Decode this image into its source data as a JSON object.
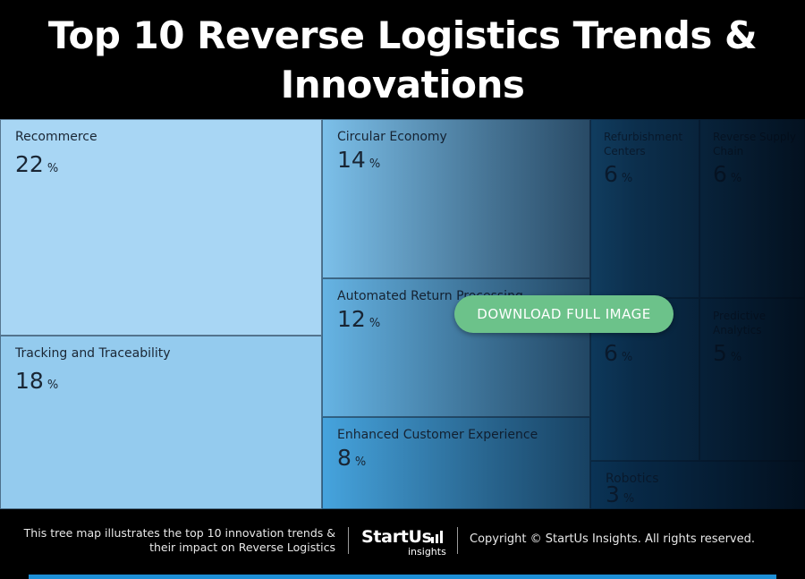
{
  "header": {
    "title": "Top 10 Reverse Logistics Trends & Innovations"
  },
  "chart_data": {
    "type": "treemap",
    "unit": "%",
    "items": [
      {
        "label": "Recommerce",
        "value": 22,
        "color": "#a8d6f4"
      },
      {
        "label": "Tracking and Traceability",
        "value": 18,
        "color": "#94cbee"
      },
      {
        "label": "Circular Economy",
        "value": 14,
        "color": "#7cc0ea"
      },
      {
        "label": "Automated Return Processing",
        "value": 12,
        "color": "#66b4e4"
      },
      {
        "label": "Enhanced Customer Experience",
        "value": 8,
        "color": "#46a4de"
      },
      {
        "label": "Refurbishment Centers",
        "value": 6,
        "color": "#2f96d6"
      },
      {
        "label": "Reverse Supply Chain",
        "value": 6,
        "color": "#2a8fd0"
      },
      {
        "label": "",
        "value": 6,
        "color": "#2588c8"
      },
      {
        "label": "Predictive Analytics",
        "value": 5,
        "color": "#2080c0"
      },
      {
        "label": "Robotics",
        "value": 3,
        "color": "#1a78b8"
      }
    ]
  },
  "cta": {
    "label": "DOWNLOAD FULL IMAGE",
    "color": "#6cc28a"
  },
  "footer": {
    "description_line1": "This tree map illustrates the top 10 innovation trends &",
    "description_line2": "their impact on Reverse Logistics",
    "logo_brand": "StartUs",
    "logo_sub": "insights",
    "copyright": "Copyright © StartUs Insights. All rights reserved."
  }
}
